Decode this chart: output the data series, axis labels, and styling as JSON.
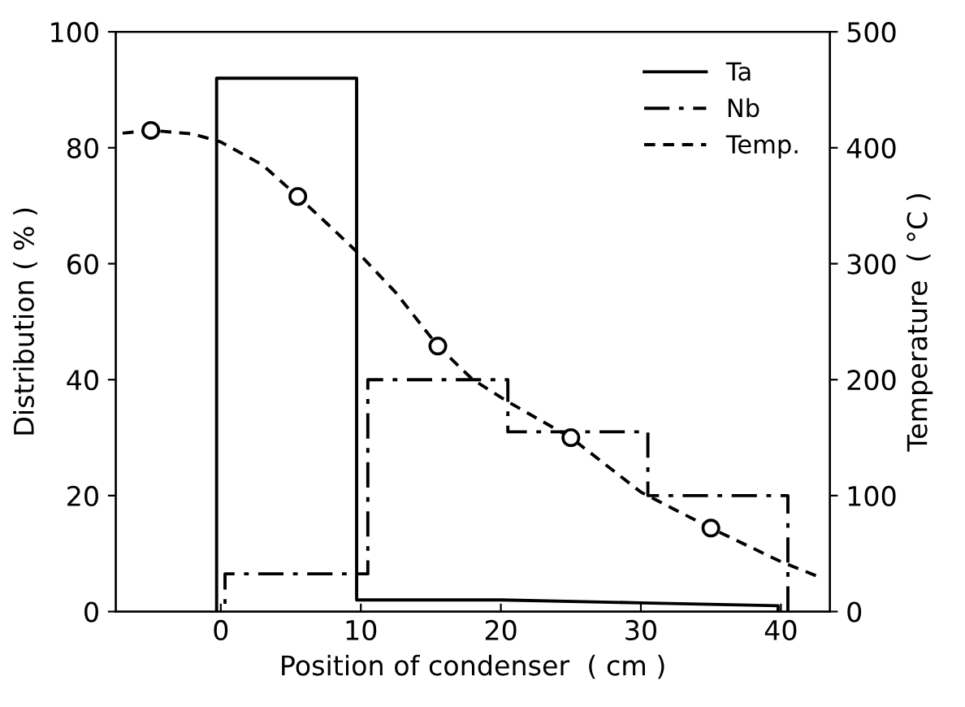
{
  "chart_data": {
    "type": "line",
    "xlabel": "Position of condenser  ( cm )",
    "ylabel": "Distribution ( % )",
    "y2label": "Temperature  ( °C )",
    "xlim": [
      -7.5,
      43.5
    ],
    "xticks": [
      0,
      10,
      20,
      30,
      40
    ],
    "ylim": [
      0,
      100
    ],
    "yticks": [
      0,
      20,
      40,
      60,
      80,
      100
    ],
    "y2lim": [
      0,
      500
    ],
    "y2ticks": [
      0,
      100,
      200,
      300,
      400,
      500
    ],
    "grid": false,
    "legend": "top right",
    "series": [
      {
        "name": "Ta",
        "color": "#000000",
        "line_style": "solid",
        "x": [
          -0.3,
          -0.3,
          9.7,
          9.7,
          20,
          30,
          39.8,
          39.8
        ],
        "values": [
          0,
          92,
          92,
          2,
          2,
          1.5,
          1,
          0
        ]
      },
      {
        "name": "Nb",
        "color": "#000000",
        "line_style": "dashdot",
        "x": [
          0.3,
          0.3,
          10.5,
          10.5,
          20.5,
          20.5,
          30.5,
          30.5,
          40.5,
          40.5
        ],
        "values": [
          0,
          6.5,
          6.5,
          40,
          40,
          31,
          31,
          20,
          20,
          0
        ]
      },
      {
        "name": "Temp.",
        "axis": "y2",
        "color": "#000000",
        "line_style": "dashed",
        "x": [
          -7.5,
          -5,
          -2,
          0,
          3,
          5.5,
          8,
          10,
          12.5,
          15.5,
          18,
          20.5,
          25,
          30,
          35,
          40,
          42.5
        ],
        "values": [
          412,
          415,
          412,
          405,
          385,
          358,
          330,
          307,
          275,
          229,
          200,
          181,
          150,
          103,
          72,
          43,
          31
        ]
      },
      {
        "type": "scatter",
        "axis": "y2",
        "color": "#000000",
        "marker": "circle",
        "x": [
          -5,
          5.5,
          15.5,
          25,
          35
        ],
        "values": [
          415,
          358,
          229,
          150,
          72
        ]
      }
    ]
  }
}
